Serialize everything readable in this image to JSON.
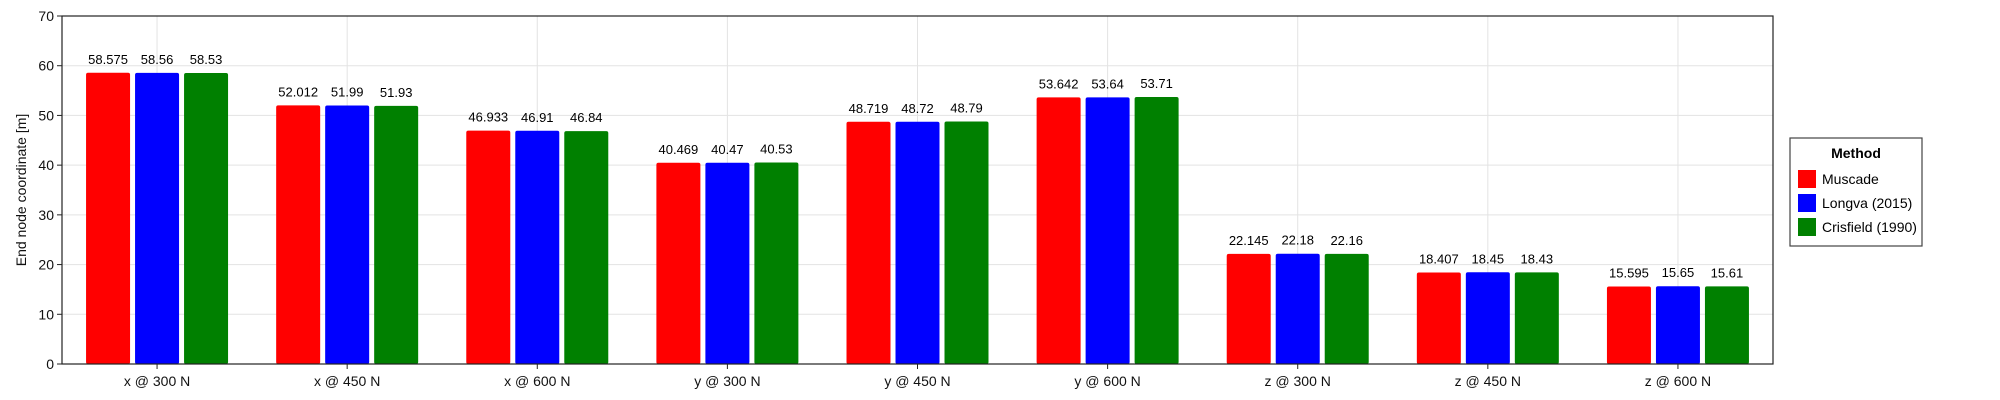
{
  "chart_data": {
    "type": "bar",
    "categories": [
      "x @ 300 N",
      "x @ 450 N",
      "x @ 600 N",
      "y @ 300 N",
      "y @ 450 N",
      "y @ 600 N",
      "z @ 300 N",
      "z @ 450 N",
      "z @ 600 N"
    ],
    "series": [
      {
        "name": "Muscade",
        "color": "#ff0000",
        "values": [
          58.575,
          52.012,
          46.933,
          40.469,
          48.719,
          53.642,
          22.145,
          18.407,
          15.595
        ],
        "labels": [
          "58.575",
          "52.012",
          "46.933",
          "40.469",
          "48.719",
          "53.642",
          "22.145",
          "18.407",
          "15.595"
        ]
      },
      {
        "name": "Longva (2015)",
        "color": "#0000ff",
        "values": [
          58.56,
          51.99,
          46.91,
          40.47,
          48.72,
          53.64,
          22.18,
          18.45,
          15.65
        ],
        "labels": [
          "58.56",
          "51.99",
          "46.91",
          "40.47",
          "48.72",
          "53.64",
          "22.18",
          "18.45",
          "15.65"
        ]
      },
      {
        "name": "Crisfield (1990)",
        "color": "#008000",
        "values": [
          58.53,
          51.93,
          46.84,
          40.53,
          48.79,
          53.71,
          22.16,
          18.43,
          15.61
        ],
        "labels": [
          "58.53",
          "51.93",
          "46.84",
          "40.53",
          "48.79",
          "53.71",
          "22.16",
          "18.43",
          "15.61"
        ]
      }
    ],
    "title": "",
    "xlabel": "",
    "ylabel": "End node coordinate [m]",
    "ylim": [
      0,
      70
    ],
    "yticks": [
      0,
      10,
      20,
      30,
      40,
      50,
      60,
      70
    ],
    "grid": true,
    "legend": {
      "title": "Method",
      "placement": "right"
    }
  }
}
